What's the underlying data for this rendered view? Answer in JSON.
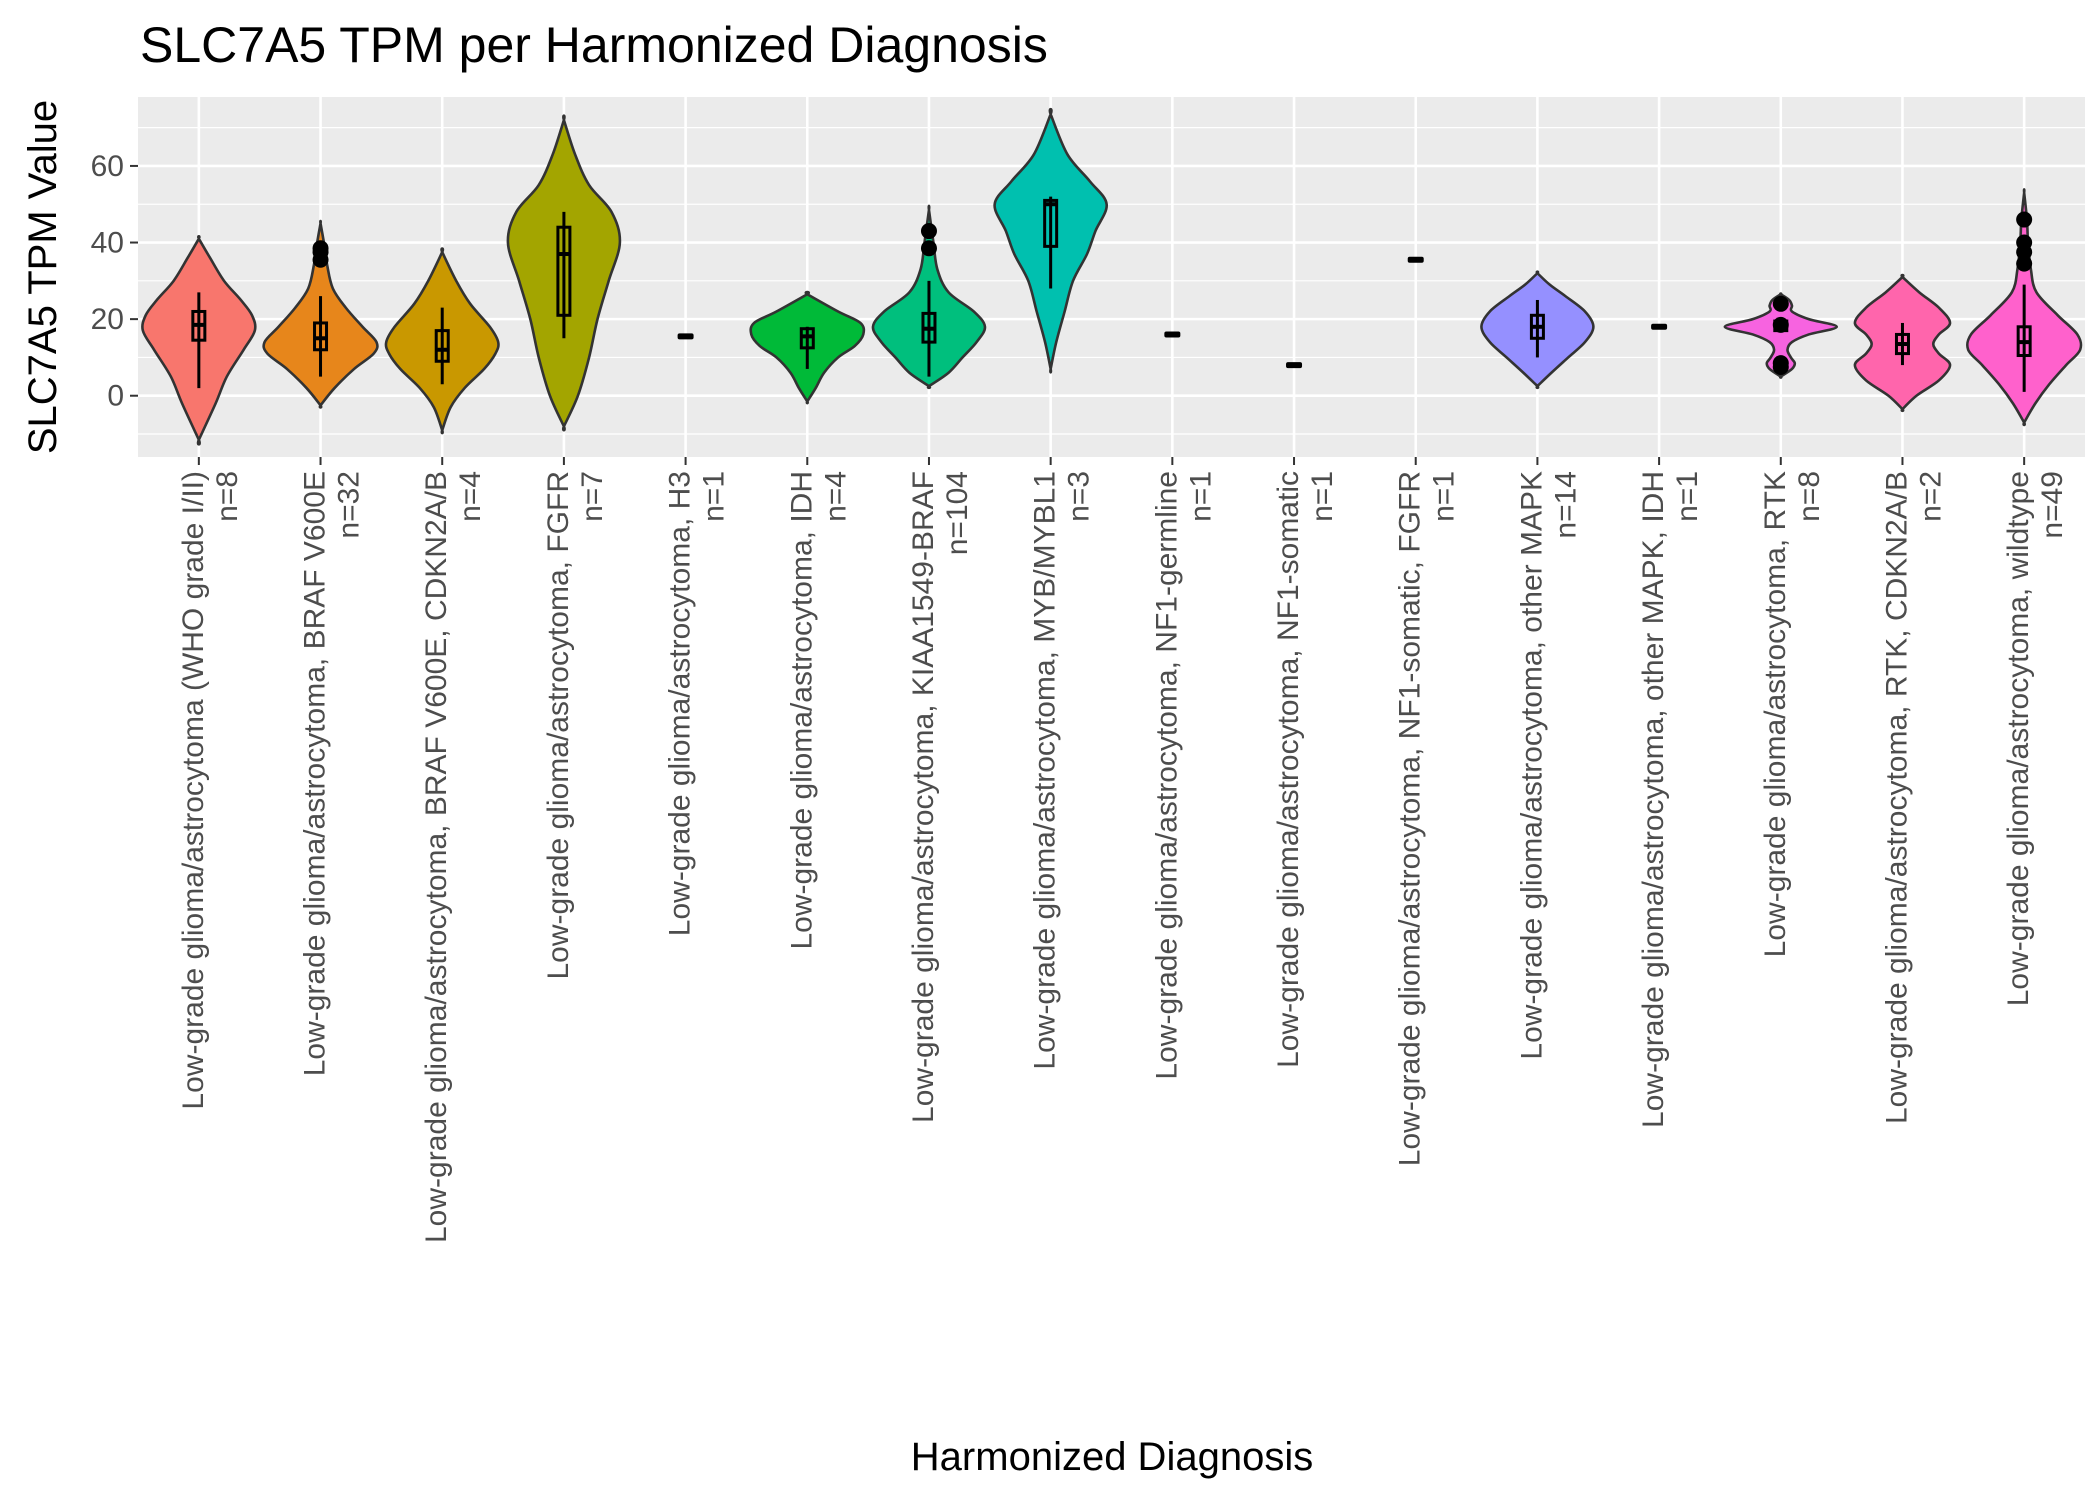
{
  "chart_data": {
    "type": "violin",
    "title": "SLC7A5 TPM per Harmonized Diagnosis",
    "xlabel": "Harmonized Diagnosis",
    "ylabel": "SLC7A5 TPM Value",
    "ylim": [
      -16,
      78
    ],
    "yticks": [
      0,
      20,
      40,
      60
    ],
    "grid": true,
    "legend": "none",
    "categories": [
      {
        "name": "Low-grade glioma/astrocytoma (WHO grade I/II)",
        "n_label": "n=8",
        "color": "#F8766D",
        "kde": [
          [
            -11.5,
            0
          ],
          [
            -2,
            0.3
          ],
          [
            5,
            0.5
          ],
          [
            12,
            0.8
          ],
          [
            17,
            1.0
          ],
          [
            21,
            0.95
          ],
          [
            25,
            0.75
          ],
          [
            30,
            0.45
          ],
          [
            36,
            0.2
          ],
          [
            41,
            0
          ]
        ],
        "box": {
          "q1": 14.5,
          "median": 18.5,
          "q3": 22,
          "whisker_low": 2,
          "whisker_high": 27
        },
        "outliers": []
      },
      {
        "name": "Low-grade glioma/astrocytoma, BRAF V600E",
        "n_label": "n=32",
        "color": "#E7861B",
        "kde": [
          [
            -2.5,
            0
          ],
          [
            2,
            0.25
          ],
          [
            7,
            0.6
          ],
          [
            11,
            0.95
          ],
          [
            14,
            1.0
          ],
          [
            18,
            0.75
          ],
          [
            23,
            0.45
          ],
          [
            28,
            0.22
          ],
          [
            34,
            0.12
          ],
          [
            40,
            0.06
          ],
          [
            45,
            0
          ]
        ],
        "box": {
          "q1": 12,
          "median": 15,
          "q3": 19,
          "whisker_low": 5,
          "whisker_high": 26
        },
        "outliers": [
          35.5,
          37.5,
          38.5
        ]
      },
      {
        "name": "Low-grade glioma/astrocytoma, BRAF V600E, CDKN2A/B",
        "n_label": "n=4",
        "color": "#C99800",
        "kde": [
          [
            -9,
            0
          ],
          [
            -3,
            0.15
          ],
          [
            2,
            0.4
          ],
          [
            7,
            0.75
          ],
          [
            11,
            0.95
          ],
          [
            14,
            1.0
          ],
          [
            18,
            0.85
          ],
          [
            24,
            0.5
          ],
          [
            30,
            0.25
          ],
          [
            37.5,
            0
          ]
        ],
        "box": {
          "q1": 9,
          "median": 12,
          "q3": 17,
          "whisker_low": 3,
          "whisker_high": 23
        },
        "outliers": []
      },
      {
        "name": "Low-grade glioma/astrocytoma, FGFR",
        "n_label": "n=7",
        "color": "#A3A500",
        "kde": [
          [
            -8,
            0
          ],
          [
            0,
            0.25
          ],
          [
            10,
            0.45
          ],
          [
            20,
            0.6
          ],
          [
            30,
            0.8
          ],
          [
            40,
            1.0
          ],
          [
            48,
            0.85
          ],
          [
            55,
            0.45
          ],
          [
            63,
            0.2
          ],
          [
            72,
            0
          ]
        ],
        "box": {
          "q1": 21,
          "median": 37,
          "q3": 44,
          "whisker_low": 15,
          "whisker_high": 48
        },
        "outliers": []
      },
      {
        "name": "Low-grade glioma/astrocytoma, H3",
        "n_label": "n=1",
        "color": "#6BB100",
        "kde": [],
        "box": {
          "q1": 15.5,
          "median": 15.5,
          "q3": 15.5,
          "whisker_low": 15.5,
          "whisker_high": 15.5
        },
        "outliers": []
      },
      {
        "name": "Low-grade glioma/astrocytoma, IDH",
        "n_label": "n=4",
        "color": "#00BA38",
        "kde": [
          [
            -1.5,
            0
          ],
          [
            2,
            0.15
          ],
          [
            6,
            0.3
          ],
          [
            10,
            0.55
          ],
          [
            13,
            0.85
          ],
          [
            16,
            1.0
          ],
          [
            19,
            0.95
          ],
          [
            22,
            0.55
          ],
          [
            26.5,
            0
          ]
        ],
        "box": {
          "q1": 12.5,
          "median": 15.5,
          "q3": 17.5,
          "whisker_low": 7,
          "whisker_high": 18
        },
        "outliers": []
      },
      {
        "name": "Low-grade glioma/astrocytoma, KIAA1549-BRAF",
        "n_label": "n=104",
        "color": "#00BF7D",
        "kde": [
          [
            2.5,
            0
          ],
          [
            6,
            0.35
          ],
          [
            10,
            0.6
          ],
          [
            14,
            0.85
          ],
          [
            18,
            1.0
          ],
          [
            22,
            0.8
          ],
          [
            27,
            0.35
          ],
          [
            33,
            0.15
          ],
          [
            40,
            0.08
          ],
          [
            48.5,
            0
          ]
        ],
        "box": {
          "q1": 14,
          "median": 17.5,
          "q3": 21.5,
          "whisker_low": 5,
          "whisker_high": 30
        },
        "outliers": [
          38.5,
          43
        ]
      },
      {
        "name": "Low-grade glioma/astrocytoma, MYB/MYBL1",
        "n_label": "n=3",
        "color": "#00C0AF",
        "kde": [
          [
            7,
            0
          ],
          [
            14,
            0.1
          ],
          [
            22,
            0.25
          ],
          [
            30,
            0.4
          ],
          [
            37,
            0.65
          ],
          [
            43,
            0.8
          ],
          [
            50,
            1.0
          ],
          [
            56,
            0.7
          ],
          [
            63,
            0.3
          ],
          [
            73.5,
            0
          ]
        ],
        "box": {
          "q1": 39,
          "median": 50,
          "q3": 51,
          "whisker_low": 28,
          "whisker_high": 52
        },
        "outliers": []
      },
      {
        "name": "Low-grade glioma/astrocytoma, NF1-germline",
        "n_label": "n=1",
        "color": "#00BCD8",
        "kde": [],
        "box": {
          "q1": 16,
          "median": 16,
          "q3": 16,
          "whisker_low": 16,
          "whisker_high": 16
        },
        "outliers": []
      },
      {
        "name": "Low-grade glioma/astrocytoma, NF1-somatic",
        "n_label": "n=1",
        "color": "#00B0F6",
        "kde": [],
        "box": {
          "q1": 8,
          "median": 8,
          "q3": 8,
          "whisker_low": 8,
          "whisker_high": 8
        },
        "outliers": []
      },
      {
        "name": "Low-grade glioma/astrocytoma, NF1-somatic, FGFR",
        "n_label": "n=1",
        "color": "#35A2FF",
        "kde": [],
        "box": {
          "q1": 35.5,
          "median": 35.5,
          "q3": 35.5,
          "whisker_low": 35.5,
          "whisker_high": 35.5
        },
        "outliers": []
      },
      {
        "name": "Low-grade glioma/astrocytoma, other MAPK",
        "n_label": "n=14",
        "color": "#9590FF",
        "kde": [
          [
            2.5,
            0
          ],
          [
            6,
            0.25
          ],
          [
            10,
            0.55
          ],
          [
            14,
            0.85
          ],
          [
            18,
            1.0
          ],
          [
            22,
            0.85
          ],
          [
            26,
            0.5
          ],
          [
            29,
            0.22
          ],
          [
            32,
            0
          ]
        ],
        "box": {
          "q1": 15,
          "median": 18,
          "q3": 21,
          "whisker_low": 10,
          "whisker_high": 25
        },
        "outliers": []
      },
      {
        "name": "Low-grade glioma/astrocytoma, other MAPK, IDH",
        "n_label": "n=1",
        "color": "#D575FE",
        "kde": [],
        "box": {
          "q1": 18,
          "median": 18,
          "q3": 18,
          "whisker_low": 18,
          "whisker_high": 18
        },
        "outliers": []
      },
      {
        "name": "Low-grade glioma/astrocytoma, RTK",
        "n_label": "n=8",
        "color": "#F763E0",
        "kde": [
          [
            5,
            0
          ],
          [
            7,
            0.2
          ],
          [
            8.5,
            0.25
          ],
          [
            10,
            0.18
          ],
          [
            12,
            0.12
          ],
          [
            14,
            0.2
          ],
          [
            16,
            0.5
          ],
          [
            18,
            1.0
          ],
          [
            20,
            0.5
          ],
          [
            22,
            0.2
          ],
          [
            23.5,
            0.2
          ],
          [
            25,
            0.15
          ],
          [
            26.5,
            0
          ]
        ],
        "box": {
          "q1": 17,
          "median": 18.5,
          "q3": 19.5,
          "whisker_low": 17,
          "whisker_high": 20
        },
        "outliers": [
          7.5,
          8.5,
          18.5,
          24
        ]
      },
      {
        "name": "Low-grade glioma/astrocytoma, RTK, CDKN2A/B",
        "n_label": "n=2",
        "color": "#FF65AC",
        "kde": [
          [
            -3.5,
            0
          ],
          [
            0,
            0.25
          ],
          [
            4,
            0.65
          ],
          [
            8,
            0.85
          ],
          [
            11,
            0.65
          ],
          [
            13.5,
            0.55
          ],
          [
            16,
            0.65
          ],
          [
            19,
            0.85
          ],
          [
            23,
            0.65
          ],
          [
            27,
            0.3
          ],
          [
            31,
            0
          ]
        ],
        "box": {
          "q1": 11,
          "median": 13.5,
          "q3": 16,
          "whisker_low": 8,
          "whisker_high": 19
        },
        "outliers": []
      },
      {
        "name": "Low-grade glioma/astrocytoma, wildtype",
        "n_label": "n=49",
        "color": "#FF61CC",
        "kde": [
          [
            -7,
            0
          ],
          [
            -2,
            0.2
          ],
          [
            3,
            0.45
          ],
          [
            8,
            0.75
          ],
          [
            12,
            1.0
          ],
          [
            16,
            0.95
          ],
          [
            21,
            0.6
          ],
          [
            27,
            0.22
          ],
          [
            33,
            0.12
          ],
          [
            40,
            0.07
          ],
          [
            46,
            0.05
          ],
          [
            53,
            0
          ]
        ],
        "box": {
          "q1": 10.5,
          "median": 14,
          "q3": 18,
          "whisker_low": 1,
          "whisker_high": 29
        },
        "outliers": [
          34.5,
          37.5,
          40,
          46
        ]
      }
    ]
  }
}
